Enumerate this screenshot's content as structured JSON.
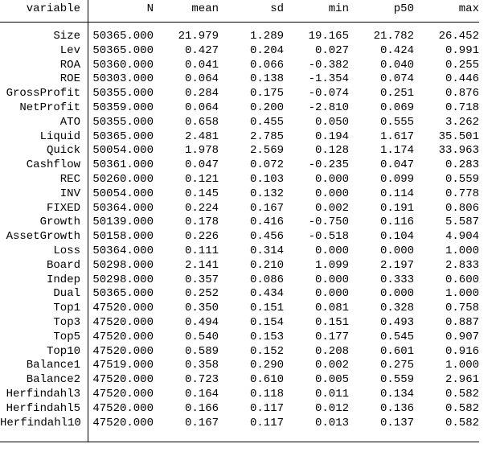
{
  "chart_data": {
    "type": "table",
    "columns": [
      "variable",
      "N",
      "mean",
      "sd",
      "min",
      "p50",
      "max"
    ],
    "rows": [
      [
        "Size",
        "50365.000",
        "21.979",
        "1.289",
        "19.165",
        "21.782",
        "26.452"
      ],
      [
        "Lev",
        "50365.000",
        "0.427",
        "0.204",
        "0.027",
        "0.424",
        "0.991"
      ],
      [
        "ROA",
        "50360.000",
        "0.041",
        "0.066",
        "-0.382",
        "0.040",
        "0.255"
      ],
      [
        "ROE",
        "50303.000",
        "0.064",
        "0.138",
        "-1.354",
        "0.074",
        "0.446"
      ],
      [
        "GrossProfit",
        "50355.000",
        "0.284",
        "0.175",
        "-0.074",
        "0.251",
        "0.876"
      ],
      [
        "NetProfit",
        "50359.000",
        "0.064",
        "0.200",
        "-2.810",
        "0.069",
        "0.718"
      ],
      [
        "ATO",
        "50355.000",
        "0.658",
        "0.455",
        "0.050",
        "0.555",
        "3.262"
      ],
      [
        "Liquid",
        "50365.000",
        "2.481",
        "2.785",
        "0.194",
        "1.617",
        "35.501"
      ],
      [
        "Quick",
        "50054.000",
        "1.978",
        "2.569",
        "0.128",
        "1.174",
        "33.963"
      ],
      [
        "Cashflow",
        "50361.000",
        "0.047",
        "0.072",
        "-0.235",
        "0.047",
        "0.283"
      ],
      [
        "REC",
        "50260.000",
        "0.121",
        "0.103",
        "0.000",
        "0.099",
        "0.559"
      ],
      [
        "INV",
        "50054.000",
        "0.145",
        "0.132",
        "0.000",
        "0.114",
        "0.778"
      ],
      [
        "FIXED",
        "50364.000",
        "0.224",
        "0.167",
        "0.002",
        "0.191",
        "0.806"
      ],
      [
        "Growth",
        "50139.000",
        "0.178",
        "0.416",
        "-0.750",
        "0.116",
        "5.587"
      ],
      [
        "AssetGrowth",
        "50158.000",
        "0.226",
        "0.456",
        "-0.518",
        "0.104",
        "4.904"
      ],
      [
        "Loss",
        "50364.000",
        "0.111",
        "0.314",
        "0.000",
        "0.000",
        "1.000"
      ],
      [
        "Board",
        "50298.000",
        "2.141",
        "0.210",
        "1.099",
        "2.197",
        "2.833"
      ],
      [
        "Indep",
        "50298.000",
        "0.357",
        "0.086",
        "0.000",
        "0.333",
        "0.600"
      ],
      [
        "Dual",
        "50365.000",
        "0.252",
        "0.434",
        "0.000",
        "0.000",
        "1.000"
      ],
      [
        "Top1",
        "47520.000",
        "0.350",
        "0.151",
        "0.081",
        "0.328",
        "0.758"
      ],
      [
        "Top3",
        "47520.000",
        "0.494",
        "0.154",
        "0.151",
        "0.493",
        "0.887"
      ],
      [
        "Top5",
        "47520.000",
        "0.540",
        "0.153",
        "0.177",
        "0.545",
        "0.907"
      ],
      [
        "Top10",
        "47520.000",
        "0.589",
        "0.152",
        "0.208",
        "0.601",
        "0.916"
      ],
      [
        "Balance1",
        "47519.000",
        "0.358",
        "0.290",
        "0.002",
        "0.275",
        "1.000"
      ],
      [
        "Balance2",
        "47520.000",
        "0.723",
        "0.610",
        "0.005",
        "0.559",
        "2.961"
      ],
      [
        "Herfindahl3",
        "47520.000",
        "0.164",
        "0.118",
        "0.011",
        "0.134",
        "0.582"
      ],
      [
        "Herfindahl5",
        "47520.000",
        "0.166",
        "0.117",
        "0.012",
        "0.136",
        "0.582"
      ],
      [
        "Herfindahl10",
        "47520.000",
        "0.167",
        "0.117",
        "0.013",
        "0.137",
        "0.582"
      ]
    ],
    "layout": {
      "grid": "off",
      "text_color": "#000000",
      "rule_color": "#000000",
      "background": "#ffffff"
    }
  }
}
